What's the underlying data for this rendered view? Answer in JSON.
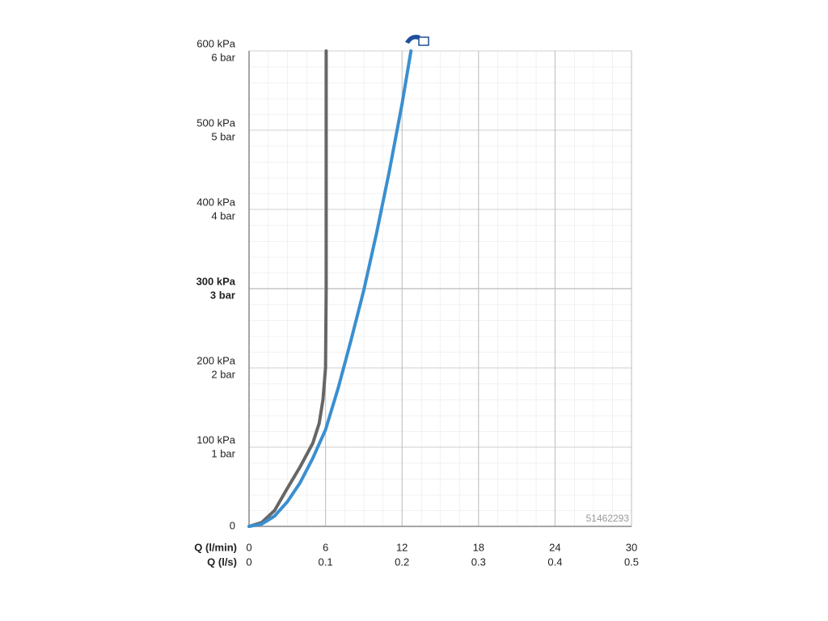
{
  "chart_data": {
    "type": "line",
    "xlabel": "Q (l/min)",
    "x2label": "Q (l/s)",
    "xlim": [
      0,
      30
    ],
    "xticks": [
      0,
      6,
      12,
      18,
      24,
      30
    ],
    "x2lim": [
      0,
      0.5
    ],
    "x2ticks": [
      0,
      0.1,
      0.2,
      0.3,
      0.4,
      0.5
    ],
    "ylim": [
      0,
      600
    ],
    "yticks": [
      0,
      {
        "value": 100,
        "label": "100 kPa",
        "label2": "1 bar"
      },
      {
        "value": 200,
        "label": "200 kPa",
        "label2": "2 bar"
      },
      {
        "value": 300,
        "label": "300 kPa",
        "label2": "3 bar"
      },
      {
        "value": 400,
        "label": "400 kPa",
        "label2": "4 bar"
      },
      {
        "value": 500,
        "label": "500 kPa",
        "label2": "5 bar"
      },
      {
        "value": 600,
        "label": "600 kPa",
        "label2": "6 bar"
      }
    ],
    "highlight_ytick": 300,
    "grid": true,
    "annotation": "51462293",
    "series": [
      {
        "color": "#666666",
        "x": [
          0,
          1,
          2,
          3,
          4,
          5,
          5.5,
          5.8,
          6,
          6.05,
          6.05
        ],
        "values": [
          0,
          5,
          20,
          48,
          75,
          105,
          130,
          160,
          200,
          300,
          600
        ]
      },
      {
        "color": "#3a8fd0",
        "x": [
          0,
          1,
          2,
          3,
          4,
          5,
          6,
          7,
          8,
          9,
          10,
          11,
          12,
          12.7
        ],
        "values": [
          0,
          3,
          13,
          31,
          55,
          86,
          122,
          175,
          235,
          298,
          370,
          448,
          533,
          600
        ]
      }
    ]
  }
}
